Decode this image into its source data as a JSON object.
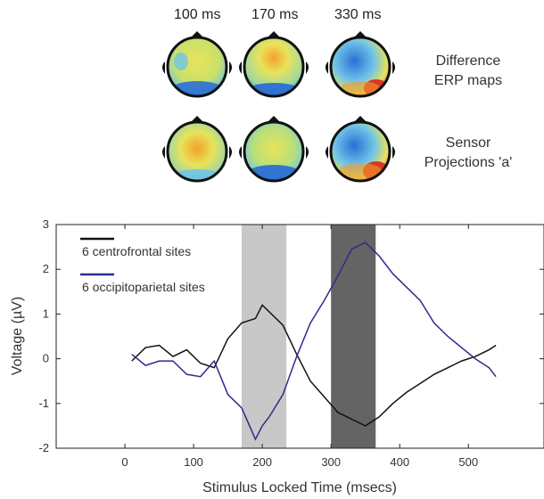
{
  "topomaps": {
    "time_labels": [
      "100 ms",
      "170 ms",
      "330 ms"
    ],
    "row_labels": [
      {
        "line1": "Difference",
        "line2": "ERP maps"
      },
      {
        "line1": "Sensor",
        "line2": "Projections 'a'"
      }
    ],
    "colors": {
      "low": "#2b6fd4",
      "mid_low": "#6fc4e8",
      "mid": "#e9e35a",
      "high": "#f29a2a",
      "max": "#d8261d"
    }
  },
  "chart_data": {
    "type": "line",
    "title": "",
    "xlabel": "Stimulus Locked Time (msecs)",
    "ylabel": "Voltage (µV)",
    "xlim": [
      -100,
      610
    ],
    "ylim": [
      -2,
      3
    ],
    "xticks": [
      0,
      100,
      200,
      300,
      400,
      500
    ],
    "yticks": [
      -2,
      -1,
      0,
      1,
      2,
      3
    ],
    "grid": false,
    "legend_position": "top-left",
    "shaded_windows": [
      {
        "x_start": 170,
        "x_end": 235,
        "color": "#c8c8c8"
      },
      {
        "x_start": 300,
        "x_end": 365,
        "color": "#646464"
      }
    ],
    "series": [
      {
        "name": "6 centrofrontal sites",
        "color": "#111111",
        "x": [
          10,
          30,
          50,
          70,
          90,
          110,
          130,
          150,
          170,
          190,
          200,
          210,
          230,
          250,
          270,
          290,
          310,
          330,
          350,
          370,
          390,
          410,
          430,
          450,
          470,
          490,
          510,
          530,
          540
        ],
        "y": [
          -0.05,
          0.25,
          0.3,
          0.05,
          0.2,
          -0.1,
          -0.2,
          0.45,
          0.8,
          0.9,
          1.2,
          1.05,
          0.75,
          0.1,
          -0.5,
          -0.85,
          -1.2,
          -1.35,
          -1.5,
          -1.3,
          -1.0,
          -0.75,
          -0.55,
          -0.35,
          -0.2,
          -0.05,
          0.05,
          0.2,
          0.3
        ]
      },
      {
        "name": "6 occipitoparietal sites",
        "color": "#2e2b8f",
        "x": [
          10,
          30,
          50,
          70,
          90,
          110,
          130,
          150,
          170,
          190,
          200,
          210,
          230,
          250,
          270,
          290,
          310,
          330,
          350,
          370,
          390,
          410,
          430,
          450,
          470,
          490,
          510,
          530,
          540
        ],
        "y": [
          0.1,
          -0.15,
          -0.05,
          -0.05,
          -0.35,
          -0.4,
          -0.05,
          -0.8,
          -1.1,
          -1.8,
          -1.5,
          -1.3,
          -0.8,
          0.05,
          0.8,
          1.3,
          1.85,
          2.45,
          2.6,
          2.3,
          1.9,
          1.6,
          1.3,
          0.8,
          0.5,
          0.25,
          0.0,
          -0.2,
          -0.4
        ]
      }
    ]
  }
}
